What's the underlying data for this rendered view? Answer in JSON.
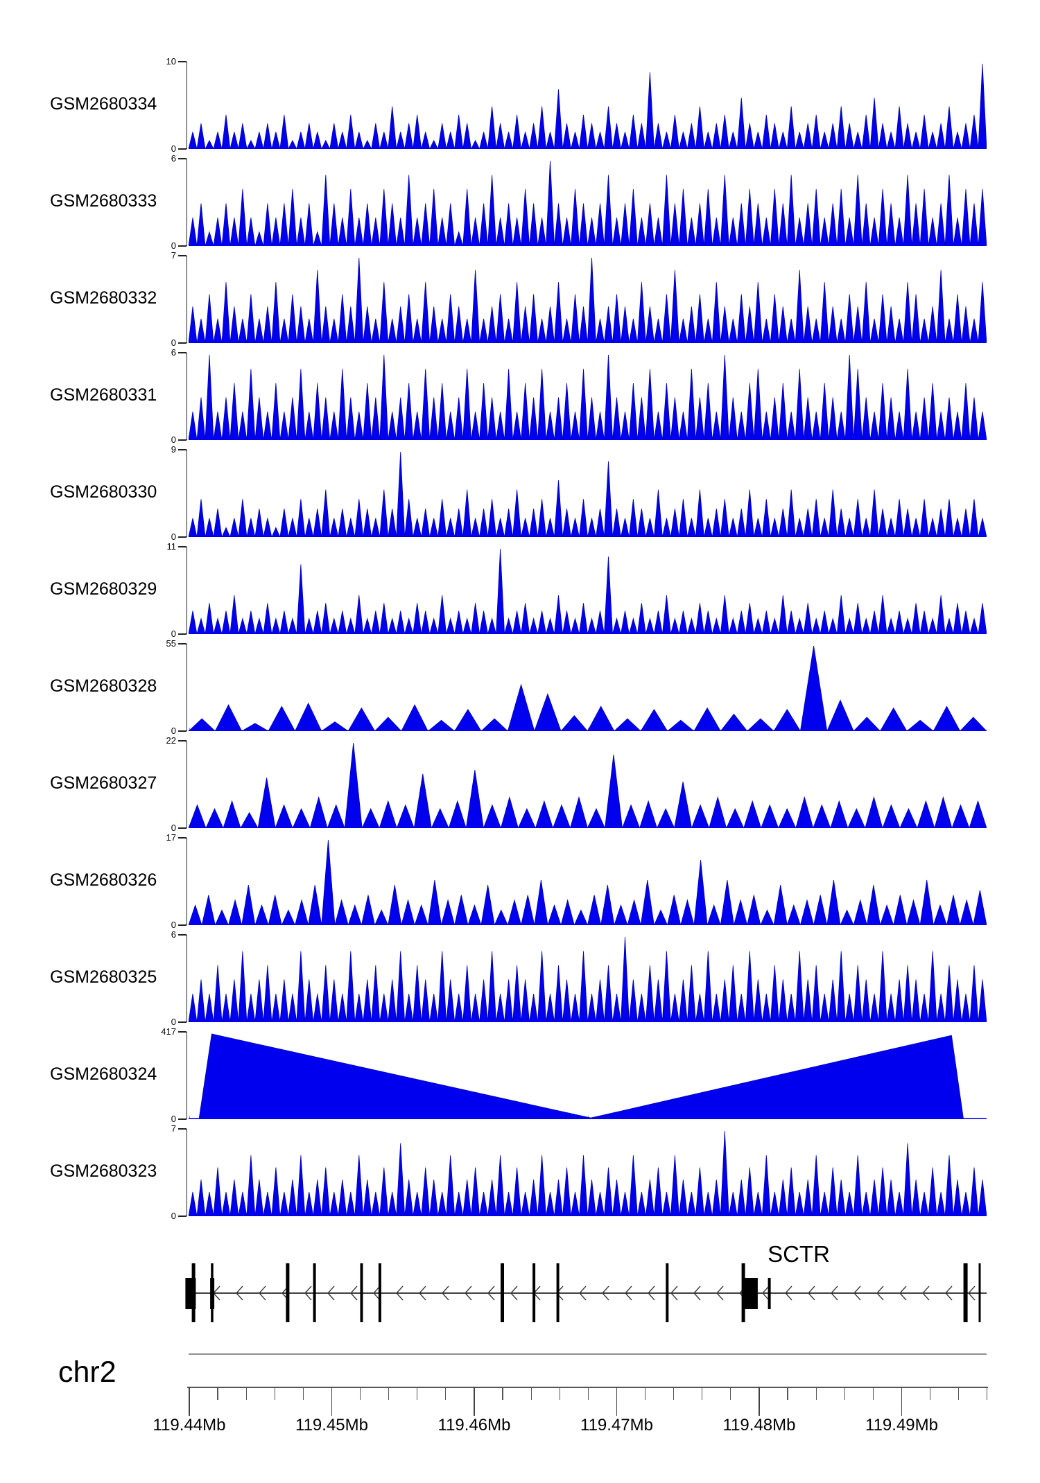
{
  "figure": {
    "background": "#ffffff"
  },
  "colors": {
    "signal_fill": "#0000EE",
    "signal_edge": "#0000B4",
    "axis": "#222222",
    "grid_tick": "#999999",
    "ruler_line": "#555555",
    "ruler_major_tick": "#444444",
    "separator": "#909090",
    "gene": "#000000",
    "arrow": "#3a3a3a"
  },
  "chart_data": {
    "type": "area",
    "title": "",
    "description": "Genome browser view of RNA-seq read coverage for 12 GEO samples over the SCTR locus; values are approximate coverage heights sampled in equal bins across the displayed region.",
    "region": {
      "chromosome": "chr2",
      "start_label": "119.44Mb",
      "end_mb": 119.496,
      "start_mb": 119.44,
      "x_tick_labels": [
        "119.44Mb",
        "119.45Mb",
        "119.46Mb",
        "119.47Mb",
        "119.48Mb",
        "119.49Mb"
      ],
      "minor_ticks_per_major": 5
    },
    "tracks": [
      {
        "label": "GSM2680334",
        "ymin": 0,
        "ymax": 10,
        "style": "spiky",
        "values": [
          2,
          3,
          1,
          2,
          4,
          2,
          3,
          1,
          2,
          3,
          2,
          4,
          1,
          2,
          3,
          2,
          1,
          3,
          2,
          4,
          2,
          1,
          3,
          2,
          5,
          2,
          3,
          4,
          2,
          1,
          3,
          2,
          4,
          3,
          1,
          2,
          5,
          3,
          2,
          4,
          2,
          3,
          5,
          2,
          7,
          3,
          2,
          4,
          3,
          2,
          5,
          3,
          2,
          4,
          3,
          9,
          3,
          2,
          4,
          2,
          3,
          5,
          2,
          3,
          4,
          2,
          6,
          3,
          2,
          4,
          3,
          2,
          5,
          2,
          3,
          4,
          2,
          3,
          5,
          3,
          2,
          4,
          6,
          3,
          2,
          5,
          3,
          2,
          4,
          2,
          3,
          5,
          2,
          3,
          4,
          10
        ]
      },
      {
        "label": "GSM2680333",
        "ymin": 0,
        "ymax": 6,
        "style": "spiky",
        "values": [
          2,
          3,
          1,
          2,
          3,
          2,
          4,
          2,
          1,
          3,
          2,
          3,
          4,
          2,
          3,
          1,
          5,
          3,
          2,
          4,
          2,
          3,
          2,
          4,
          3,
          2,
          5,
          2,
          3,
          4,
          2,
          3,
          1,
          4,
          2,
          3,
          5,
          2,
          3,
          2,
          4,
          3,
          2,
          6,
          3,
          2,
          4,
          3,
          2,
          3,
          5,
          2,
          3,
          4,
          2,
          3,
          2,
          5,
          3,
          4,
          2,
          3,
          4,
          2,
          5,
          2,
          3,
          4,
          3,
          2,
          4,
          3,
          5,
          2,
          3,
          4,
          2,
          3,
          4,
          2,
          5,
          3,
          2,
          4,
          3,
          2,
          5,
          3,
          4,
          2,
          3,
          5,
          2,
          4,
          3,
          4
        ]
      },
      {
        "label": "GSM2680332",
        "ymin": 0,
        "ymax": 7,
        "style": "spiky",
        "values": [
          3,
          2,
          4,
          2,
          5,
          3,
          2,
          4,
          2,
          3,
          5,
          2,
          4,
          3,
          2,
          6,
          3,
          2,
          4,
          3,
          7,
          3,
          2,
          5,
          2,
          3,
          4,
          2,
          5,
          3,
          2,
          4,
          3,
          2,
          6,
          2,
          3,
          4,
          2,
          5,
          3,
          4,
          2,
          3,
          5,
          2,
          4,
          3,
          7,
          2,
          3,
          4,
          3,
          2,
          5,
          3,
          2,
          4,
          6,
          2,
          3,
          4,
          2,
          5,
          3,
          2,
          4,
          3,
          5,
          2,
          4,
          3,
          2,
          6,
          3,
          2,
          5,
          3,
          2,
          4,
          3,
          5,
          2,
          4,
          3,
          2,
          5,
          4,
          2,
          3,
          6,
          2,
          4,
          3,
          2,
          5
        ]
      },
      {
        "label": "GSM2680331",
        "ymin": 0,
        "ymax": 6,
        "style": "spiky",
        "values": [
          2,
          3,
          6,
          2,
          3,
          4,
          2,
          5,
          3,
          2,
          4,
          2,
          3,
          5,
          2,
          4,
          3,
          2,
          5,
          3,
          2,
          4,
          3,
          6,
          2,
          3,
          4,
          2,
          5,
          3,
          4,
          2,
          3,
          5,
          2,
          4,
          3,
          2,
          5,
          2,
          4,
          3,
          5,
          2,
          3,
          4,
          2,
          5,
          3,
          2,
          6,
          3,
          2,
          4,
          3,
          5,
          2,
          4,
          3,
          2,
          5,
          3,
          4,
          2,
          6,
          3,
          2,
          4,
          5,
          2,
          3,
          4,
          2,
          5,
          3,
          2,
          4,
          3,
          2,
          6,
          5,
          3,
          2,
          4,
          3,
          2,
          5,
          2,
          3,
          4,
          2,
          3,
          2,
          4,
          3,
          2
        ]
      },
      {
        "label": "GSM2680330",
        "ymin": 0,
        "ymax": 9,
        "style": "spiky",
        "values": [
          2,
          4,
          2,
          3,
          1,
          2,
          4,
          2,
          3,
          2,
          1,
          3,
          2,
          4,
          2,
          3,
          5,
          2,
          3,
          2,
          4,
          3,
          2,
          5,
          3,
          9,
          4,
          2,
          3,
          2,
          4,
          2,
          3,
          5,
          2,
          3,
          4,
          2,
          3,
          5,
          2,
          3,
          4,
          2,
          6,
          3,
          2,
          4,
          2,
          3,
          8,
          3,
          2,
          4,
          3,
          2,
          5,
          2,
          3,
          4,
          2,
          5,
          2,
          3,
          4,
          2,
          3,
          5,
          2,
          4,
          2,
          3,
          5,
          2,
          3,
          4,
          2,
          5,
          3,
          2,
          4,
          2,
          5,
          3,
          2,
          4,
          3,
          2,
          4,
          2,
          3,
          4,
          2,
          3,
          4,
          2
        ]
      },
      {
        "label": "GSM2680329",
        "ymin": 0,
        "ymax": 11,
        "style": "spiky",
        "values": [
          3,
          2,
          4,
          2,
          3,
          5,
          2,
          3,
          2,
          4,
          2,
          3,
          2,
          9,
          2,
          3,
          4,
          2,
          3,
          2,
          5,
          2,
          3,
          4,
          2,
          3,
          2,
          4,
          3,
          2,
          5,
          2,
          3,
          2,
          4,
          3,
          2,
          11,
          2,
          3,
          4,
          2,
          3,
          2,
          5,
          3,
          2,
          4,
          2,
          3,
          10,
          2,
          3,
          2,
          4,
          2,
          3,
          5,
          2,
          3,
          2,
          4,
          3,
          2,
          5,
          2,
          3,
          4,
          2,
          3,
          2,
          5,
          3,
          2,
          4,
          2,
          3,
          2,
          5,
          2,
          4,
          2,
          3,
          5,
          2,
          3,
          2,
          4,
          3,
          2,
          5,
          2,
          4,
          3,
          2,
          4
        ]
      },
      {
        "label": "GSM2680328",
        "ymin": 0,
        "ymax": 55,
        "style": "spiky",
        "values": [
          8,
          17,
          5,
          16,
          18,
          6,
          15,
          9,
          17,
          7,
          14,
          8,
          30,
          24,
          10,
          16,
          8,
          14,
          7,
          15,
          11,
          8,
          14,
          55,
          20,
          9,
          15,
          7,
          16,
          9
        ]
      },
      {
        "label": "GSM2680327",
        "ymin": 0,
        "ymax": 22,
        "style": "spiky",
        "values": [
          6,
          5,
          7,
          4,
          13,
          6,
          5,
          8,
          6,
          22,
          5,
          7,
          6,
          14,
          5,
          7,
          15,
          6,
          8,
          5,
          7,
          6,
          8,
          5,
          19,
          6,
          7,
          5,
          12,
          6,
          8,
          5,
          7,
          6,
          5,
          8,
          6,
          7,
          5,
          8,
          6,
          5,
          7,
          8,
          6,
          7
        ]
      },
      {
        "label": "GSM2680326",
        "ymin": 0,
        "ymax": 17,
        "style": "spiky",
        "values": [
          4,
          6,
          3,
          5,
          8,
          4,
          6,
          3,
          5,
          8,
          17,
          5,
          4,
          6,
          3,
          8,
          5,
          4,
          9,
          5,
          6,
          4,
          8,
          3,
          5,
          6,
          9,
          4,
          5,
          3,
          6,
          8,
          4,
          5,
          9,
          3,
          6,
          5,
          13,
          4,
          9,
          5,
          6,
          3,
          8,
          4,
          5,
          6,
          9,
          3,
          5,
          8,
          4,
          6,
          5,
          9,
          4,
          6,
          5,
          7
        ]
      },
      {
        "label": "GSM2680325",
        "ymin": 0,
        "ymax": 6,
        "style": "spiky",
        "values": [
          2,
          3,
          2,
          4,
          2,
          3,
          5,
          2,
          3,
          4,
          2,
          3,
          2,
          5,
          3,
          2,
          4,
          3,
          2,
          5,
          2,
          3,
          4,
          2,
          3,
          5,
          2,
          4,
          3,
          2,
          5,
          3,
          2,
          4,
          2,
          3,
          5,
          2,
          3,
          4,
          3,
          2,
          5,
          2,
          4,
          3,
          2,
          5,
          2,
          3,
          4,
          2,
          6,
          3,
          2,
          4,
          3,
          5,
          2,
          3,
          4,
          2,
          5,
          2,
          3,
          4,
          2,
          5,
          3,
          2,
          4,
          3,
          2,
          5,
          3,
          4,
          2,
          3,
          5,
          2,
          4,
          3,
          2,
          5,
          2,
          3,
          4,
          3,
          2,
          5,
          2,
          4,
          3,
          2,
          4,
          3
        ]
      },
      {
        "label": "GSM2680324",
        "ymin": 0,
        "ymax": 417,
        "style": "polygon",
        "points": [
          [
            0.013,
            0
          ],
          [
            0.029,
            417
          ],
          [
            0.504,
            6
          ],
          [
            0.956,
            410
          ],
          [
            0.971,
            0
          ]
        ]
      },
      {
        "label": "GSM2680323",
        "ymin": 0,
        "ymax": 7,
        "style": "spiky",
        "values": [
          2,
          3,
          2,
          4,
          2,
          3,
          2,
          5,
          3,
          2,
          4,
          2,
          3,
          5,
          2,
          3,
          4,
          2,
          3,
          2,
          5,
          3,
          2,
          4,
          2,
          6,
          3,
          2,
          4,
          3,
          2,
          5,
          2,
          3,
          4,
          2,
          3,
          5,
          2,
          4,
          2,
          3,
          5,
          2,
          3,
          4,
          2,
          5,
          3,
          2,
          4,
          3,
          2,
          5,
          2,
          3,
          4,
          2,
          5,
          3,
          2,
          4,
          2,
          3,
          7,
          2,
          3,
          4,
          2,
          5,
          2,
          3,
          4,
          2,
          3,
          5,
          2,
          4,
          3,
          2,
          5,
          2,
          3,
          4,
          3,
          2,
          6,
          3,
          2,
          4,
          2,
          5,
          3,
          2,
          4,
          3
        ]
      }
    ],
    "gene_track": {
      "gene_label": "SCTR",
      "strand": "reverse",
      "exons": [
        {
          "frac": -0.004,
          "w": 15,
          "type": "mid"
        },
        {
          "frac": 0.004,
          "w": 5,
          "type": "tall"
        },
        {
          "frac": 0.027,
          "w": 6,
          "type": "mid"
        },
        {
          "frac": 0.028,
          "w": 3.5,
          "type": "tall"
        },
        {
          "frac": 0.122,
          "w": 5,
          "type": "tall"
        },
        {
          "frac": 0.156,
          "w": 4,
          "type": "tall"
        },
        {
          "frac": 0.215,
          "w": 4,
          "type": "tall"
        },
        {
          "frac": 0.238,
          "w": 4,
          "type": "tall"
        },
        {
          "frac": 0.391,
          "w": 5,
          "type": "tall"
        },
        {
          "frac": 0.431,
          "w": 4,
          "type": "tall"
        },
        {
          "frac": 0.461,
          "w": 4,
          "type": "tall"
        },
        {
          "frac": 0.598,
          "w": 4,
          "type": "tall"
        },
        {
          "frac": 0.693,
          "w": 5,
          "type": "tall"
        },
        {
          "frac": 0.695,
          "w": 21,
          "type": "mid"
        },
        {
          "frac": 0.726,
          "w": 4,
          "type": "mid"
        },
        {
          "frac": 0.971,
          "w": 6,
          "type": "tall"
        },
        {
          "frac": 0.99,
          "w": 3,
          "type": "tall"
        }
      ]
    }
  }
}
